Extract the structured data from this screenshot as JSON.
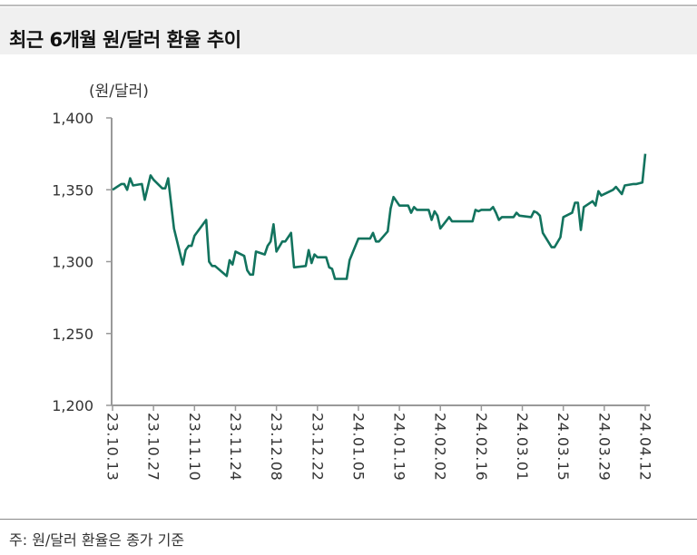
{
  "header": {
    "title": "최근 6개월 원/달러 환율 추이"
  },
  "footer": {
    "note": "주: 원/달러 환율은 종가 기준"
  },
  "chart_data": {
    "type": "line",
    "title": "최근 6개월 원/달러 환율 추이",
    "ylabel": "(원/달러)",
    "xlabel": "",
    "ylim": [
      1200,
      1400
    ],
    "yticks": [
      1200,
      1250,
      1300,
      1350,
      1400
    ],
    "ytick_labels": [
      "1,200",
      "1,250",
      "1,300",
      "1,350",
      "1,400"
    ],
    "xlim": [
      "2023-10-13",
      "2024-04-12"
    ],
    "xticks": [
      "2023-10-13",
      "2023-10-27",
      "2023-11-10",
      "2023-11-24",
      "2023-12-08",
      "2023-12-22",
      "2024-01-05",
      "2024-01-19",
      "2024-02-02",
      "2024-02-16",
      "2024-03-01",
      "2024-03-15",
      "2024-03-29",
      "2024-04-12"
    ],
    "xtick_labels": [
      "23.10.13",
      "23.10.27",
      "23.11.10",
      "23.11.24",
      "23.12.08",
      "23.12.22",
      "24.01.05",
      "24.01.19",
      "24.02.02",
      "24.02.16",
      "24.03.01",
      "24.03.15",
      "24.03.29",
      "24.04.12"
    ],
    "grid": false,
    "line_color": "#12735e",
    "series": [
      {
        "x": [
          "2023-10-13",
          "2023-10-16",
          "2023-10-17",
          "2023-10-18",
          "2023-10-19",
          "2023-10-20",
          "2023-10-23",
          "2023-10-24",
          "2023-10-26",
          "2023-10-27",
          "2023-10-30",
          "2023-10-31",
          "2023-11-01",
          "2023-11-03",
          "2023-11-06",
          "2023-11-07",
          "2023-11-08",
          "2023-11-09",
          "2023-11-10",
          "2023-11-14",
          "2023-11-15",
          "2023-11-16",
          "2023-11-17",
          "2023-11-21",
          "2023-11-22",
          "2023-11-23",
          "2023-11-24",
          "2023-11-27",
          "2023-11-28",
          "2023-11-29",
          "2023-11-30",
          "2023-12-01",
          "2023-12-04",
          "2023-12-05",
          "2023-12-06",
          "2023-12-07",
          "2023-12-08",
          "2023-12-10",
          "2023-12-11",
          "2023-12-12",
          "2023-12-13",
          "2023-12-14",
          "2023-12-18",
          "2023-12-19",
          "2023-12-20",
          "2023-12-21",
          "2023-12-22",
          "2023-12-25",
          "2023-12-26",
          "2023-12-27",
          "2023-12-28",
          "2024-01-01",
          "2024-01-02",
          "2024-01-05",
          "2024-01-09",
          "2024-01-10",
          "2024-01-11",
          "2024-01-12",
          "2024-01-15",
          "2024-01-16",
          "2024-01-17",
          "2024-01-19",
          "2024-01-22",
          "2024-01-23",
          "2024-01-24",
          "2024-01-25",
          "2024-01-29",
          "2024-01-30",
          "2024-01-31",
          "2024-02-01",
          "2024-02-02",
          "2024-02-05",
          "2024-02-06",
          "2024-02-13",
          "2024-02-14",
          "2024-02-15",
          "2024-02-16",
          "2024-02-19",
          "2024-02-20",
          "2024-02-21",
          "2024-02-22",
          "2024-02-23",
          "2024-02-27",
          "2024-02-28",
          "2024-02-29",
          "2024-03-04",
          "2024-03-05",
          "2024-03-06",
          "2024-03-07",
          "2024-03-08",
          "2024-03-11",
          "2024-03-12",
          "2024-03-14",
          "2024-03-15",
          "2024-03-18",
          "2024-03-19",
          "2024-03-20",
          "2024-03-21",
          "2024-03-22",
          "2024-03-25",
          "2024-03-26",
          "2024-03-27",
          "2024-03-28",
          "2024-04-01",
          "2024-04-02",
          "2024-04-04",
          "2024-04-05",
          "2024-04-08",
          "2024-04-09",
          "2024-04-11",
          "2024-04-12"
        ],
        "y": [
          1350,
          1354,
          1354,
          1350,
          1358,
          1353,
          1354,
          1343,
          1360,
          1357,
          1351,
          1351,
          1358,
          1323,
          1298,
          1308,
          1311,
          1311,
          1318,
          1329,
          1300,
          1297,
          1297,
          1290,
          1301,
          1298,
          1307,
          1304,
          1294,
          1291,
          1291,
          1307,
          1305,
          1311,
          1314,
          1326,
          1307,
          1314,
          1314,
          1317,
          1320,
          1296,
          1297,
          1308,
          1299,
          1305,
          1303,
          1303,
          1296,
          1295,
          1288,
          1288,
          1301,
          1316,
          1316,
          1320,
          1314,
          1314,
          1321,
          1337,
          1345,
          1339,
          1339,
          1334,
          1338,
          1336,
          1336,
          1329,
          1335,
          1332,
          1323,
          1331,
          1328,
          1328,
          1336,
          1335,
          1336,
          1336,
          1338,
          1334,
          1329,
          1331,
          1331,
          1334,
          1332,
          1331,
          1335,
          1334,
          1332,
          1320,
          1310,
          1310,
          1317,
          1331,
          1334,
          1341,
          1341,
          1322,
          1338,
          1342,
          1339,
          1349,
          1346,
          1350,
          1352,
          1347,
          1353,
          1354,
          1354,
          1355,
          1375
        ]
      }
    ]
  }
}
